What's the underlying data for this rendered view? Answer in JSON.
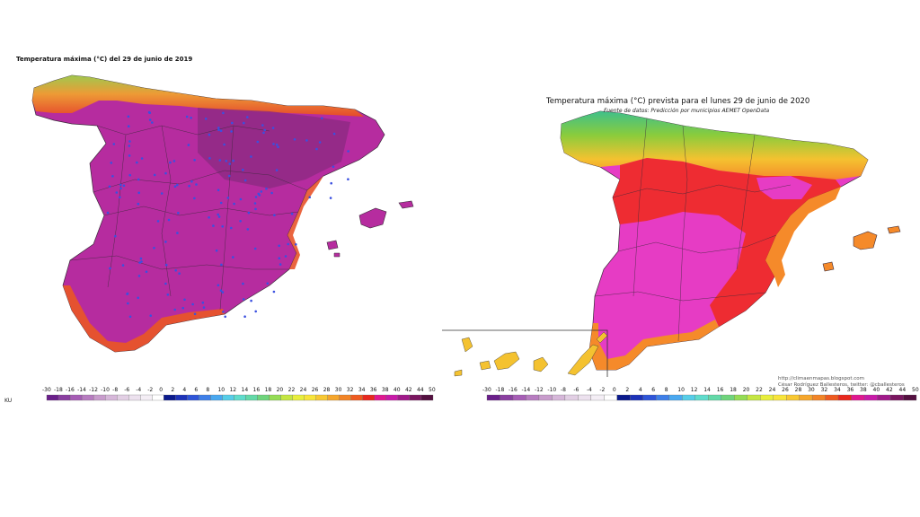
{
  "left_map": {
    "title": "Temperatura máxima (°C) del 29 de junio de 2019",
    "corner_label": "KU"
  },
  "right_map": {
    "title": "Temperatura máxima (°C) prevista para el lunes 29 de junio de 2020",
    "subtitle": "Fuente de datos: Predicción por municipios  AEMET OpenData",
    "credit_site": "http://climaenmapas.blogspot.com",
    "credit_author": "César Rodríguez Ballesteros, twitter: @cballesteros"
  },
  "legend": {
    "ticks": [
      "-30",
      "-18",
      "-16",
      "-14",
      "-12",
      "-10",
      "-8",
      "-6",
      "-4",
      "-2",
      "0",
      "2",
      "4",
      "6",
      "8",
      "10",
      "12",
      "14",
      "16",
      "18",
      "20",
      "22",
      "24",
      "26",
      "28",
      "30",
      "32",
      "34",
      "36",
      "38",
      "40",
      "42",
      "44",
      "50"
    ],
    "colors": [
      "#6a1f8a",
      "#8a3fa0",
      "#a65db5",
      "#b77cc0",
      "#c89ccc",
      "#d6b7d9",
      "#e2cfe4",
      "#ece1ee",
      "#f4eef5",
      "#ffffff",
      "#0b1a8c",
      "#1d33b8",
      "#2f55d8",
      "#3f7fe8",
      "#4aa8f0",
      "#56cde8",
      "#5fdccc",
      "#63d9a8",
      "#6fd47c",
      "#94dc55",
      "#c4e642",
      "#e8ee3c",
      "#f8e43a",
      "#f8c832",
      "#f5a62c",
      "#f28426",
      "#ee5a20",
      "#e8281e",
      "#e01890",
      "#c81aa8",
      "#a01a8a",
      "#7a1660",
      "#541040"
    ]
  },
  "colors": {
    "outline": "#3a2a3a",
    "left_hot": "#b62c9f",
    "left_core": "#8a2a80",
    "left_edge": "#e8542a",
    "right_pink": "#e63cc4",
    "right_red": "#ee2a22",
    "right_orange": "#f58a2a",
    "right_yellow": "#f4c230",
    "right_green": "#78c83c",
    "station_dot": "#3b50e0"
  }
}
